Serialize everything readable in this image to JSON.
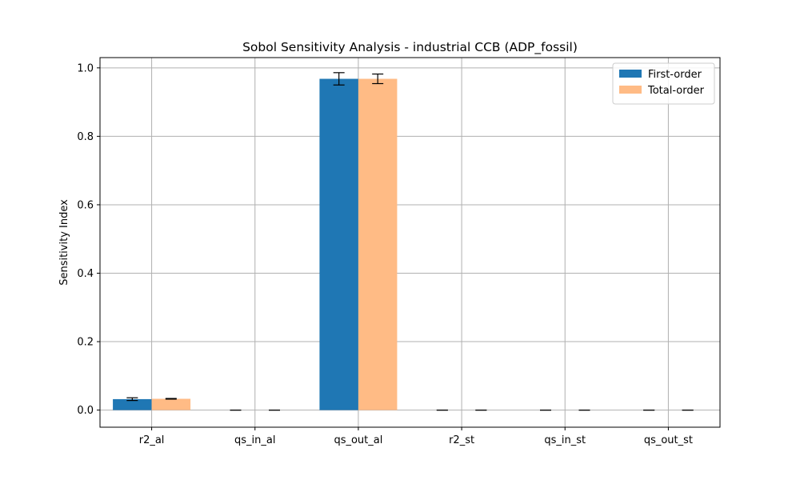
{
  "chart_data": {
    "type": "bar",
    "title": "Sobol Sensitivity Analysis - industrial CCB (ADP_fossil)",
    "xlabel": "",
    "ylabel": "Sensitivity Index",
    "ylim": [
      -0.05,
      1.03
    ],
    "yticks": [
      0.0,
      0.2,
      0.4,
      0.6,
      0.8,
      1.0
    ],
    "ytick_labels": [
      "0.0",
      "0.2",
      "0.4",
      "0.6",
      "0.8",
      "1.0"
    ],
    "categories": [
      "r2_al",
      "qs_in_al",
      "qs_out_al",
      "r2_st",
      "qs_in_st",
      "qs_out_st"
    ],
    "grid": true,
    "legend_position": "top-right",
    "series": [
      {
        "name": "First-order",
        "color": "#1f77b4",
        "values": [
          0.032,
          0.0,
          0.968,
          0.0,
          0.0,
          0.0
        ],
        "errors": [
          0.004,
          0.0,
          0.018,
          0.0,
          0.0,
          0.0
        ]
      },
      {
        "name": "Total-order",
        "color": "#ffbb85",
        "values": [
          0.033,
          0.0,
          0.968,
          0.0,
          0.0,
          0.0
        ],
        "errors": [
          0.001,
          0.0,
          0.014,
          0.0,
          0.0,
          0.0
        ]
      }
    ]
  }
}
